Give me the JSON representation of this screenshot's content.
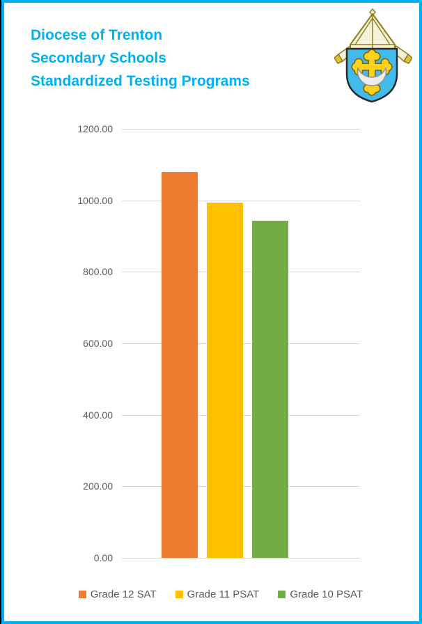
{
  "page": {
    "title_lines": [
      "Diocese of Trenton",
      "Secondary Schools",
      "Standardized Testing Programs"
    ],
    "title_color": "#00B0F0",
    "border_color": "#00B0F0",
    "logo": {
      "name": "diocese-of-trenton-coat-of-arms",
      "shield_color": "#40BBEB",
      "cross_color": "#FFD21E",
      "mitre_color": "#F5F2DC",
      "fringe_color": "#E3C135",
      "crescent_color": "#ECECEC",
      "outline_color": "#8F7E1E"
    }
  },
  "chart_data": {
    "type": "bar",
    "title": "",
    "categories": [
      ""
    ],
    "series": [
      {
        "name": "Grade 12 SAT",
        "values": [
          1079
        ],
        "color": "#ED7D31"
      },
      {
        "name": "Grade 11 PSAT",
        "values": [
          994
        ],
        "color": "#FFC000"
      },
      {
        "name": "Grade 10 PSAT",
        "values": [
          943
        ],
        "color": "#70AD47"
      }
    ],
    "ylim": [
      0,
      1200
    ],
    "ytick_step": 200,
    "ytick_labels": [
      "1200.00",
      "1000.00",
      "800.00",
      "600.00",
      "400.00",
      "200.00",
      "0.00"
    ],
    "grid": true,
    "gridline_color": "#D9D9D9",
    "axis_label_color": "#595959",
    "legend_position": "bottom"
  }
}
